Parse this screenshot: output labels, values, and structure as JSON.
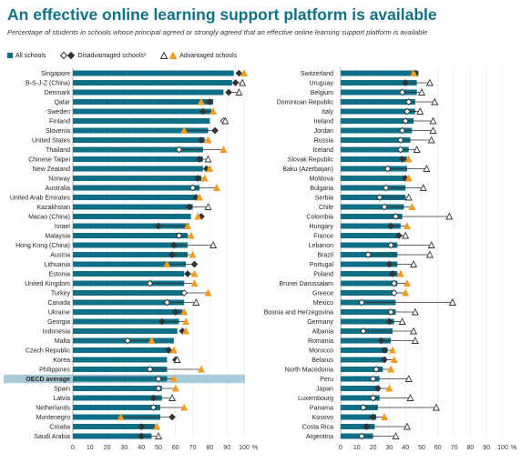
{
  "title": "An effective online learning support platform is available",
  "subtitle": "Percentage of students in schools whose principal agreed or strongly agreed that an effective online learning support platform is available",
  "legend": {
    "all": "All schools",
    "disadv": "Disadvantaged schools¹",
    "adv": "Advantaged schools"
  },
  "colors": {
    "bar": "#0f6f86",
    "oecd_highlight": "#a9cbd7",
    "adv_marker": "#f39c1f",
    "disadv_marker": "#ffffff",
    "line": "#333333",
    "title": "#0f7285"
  },
  "chart_data": [
    {
      "type": "bar",
      "orientation": "horizontal",
      "xlabel": "%",
      "xlim": [
        0,
        100
      ],
      "xticks": [
        "0",
        "10",
        "20",
        "30",
        "40",
        "50",
        "60",
        "70",
        "80",
        "90",
        "100"
      ],
      "xunit": "%",
      "categories": [
        "Singapore",
        "B-S-J-Z (China)",
        "Denmark",
        "Qatar",
        "Sweden",
        "Finland",
        "Slovenia",
        "United States",
        "Thailand",
        "Chinese Taipei",
        "New Zealand",
        "Norway",
        "Australia",
        "United Arab Emirates",
        "Kazakhstan",
        "Macao (China)",
        "Israel",
        "Malaysia",
        "Hong Kong (China)",
        "Austria",
        "Lithuania",
        "Estonia",
        "United Kingdom",
        "Turkey",
        "Canada",
        "Ukraine",
        "Georgia",
        "Indonesia",
        "Malta",
        "Czech Republic",
        "Korea",
        "Philippines",
        "OECD average",
        "Spain",
        "Latvia",
        "Netherlands",
        "Montenegro",
        "Croatia",
        "Saudi Arabia"
      ],
      "highlight": "OECD average",
      "series": [
        {
          "name": "All schools",
          "values": [
            94,
            93,
            88,
            82,
            81,
            80,
            79,
            77,
            76,
            76,
            76,
            75,
            74,
            72,
            70,
            69,
            68,
            67,
            67,
            67,
            66,
            65,
            65,
            65,
            65,
            64,
            62,
            61,
            59,
            57,
            55,
            55,
            55,
            52,
            52,
            51,
            51,
            48,
            46
          ],
          "hollow": [
            false,
            false,
            false,
            false,
            false,
            false,
            false,
            false,
            false,
            false,
            false,
            false,
            false,
            false,
            false,
            false,
            false,
            false,
            false,
            false,
            false,
            false,
            false,
            false,
            false,
            false,
            false,
            false,
            false,
            false,
            false,
            false,
            false,
            false,
            false,
            false,
            false,
            false,
            false
          ]
        },
        {
          "name": "Disadvantaged schools¹",
          "values": [
            97,
            95,
            91,
            80,
            76,
            88,
            83,
            75,
            62,
            74,
            78,
            73,
            70,
            72,
            68,
            75,
            50,
            62,
            59,
            58,
            71,
            67,
            45,
            65,
            55,
            60,
            52,
            64,
            32,
            56,
            60,
            45,
            50,
            50,
            47,
            47,
            58,
            40,
            40
          ],
          "hollow": [
            false,
            false,
            false,
            false,
            false,
            true,
            false,
            false,
            true,
            false,
            false,
            false,
            true,
            false,
            false,
            false,
            false,
            true,
            false,
            false,
            false,
            false,
            true,
            true,
            true,
            false,
            false,
            false,
            true,
            false,
            false,
            true,
            true,
            true,
            false,
            true,
            false,
            false,
            false
          ]
        },
        {
          "name": "Advantaged schools",
          "values": [
            100,
            99,
            97,
            75,
            82,
            89,
            65,
            79,
            88,
            79,
            80,
            77,
            84,
            74,
            79,
            73,
            67,
            69,
            82,
            70,
            55,
            71,
            71,
            79,
            72,
            65,
            66,
            66,
            46,
            59,
            61,
            75,
            59,
            60,
            58,
            65,
            28,
            49,
            50
          ],
          "hollow": [
            false,
            true,
            true,
            false,
            false,
            true,
            false,
            false,
            false,
            true,
            false,
            false,
            false,
            false,
            true,
            false,
            false,
            false,
            true,
            false,
            false,
            false,
            false,
            false,
            true,
            false,
            false,
            false,
            false,
            false,
            true,
            false,
            false,
            false,
            true,
            false,
            false,
            false,
            true
          ]
        }
      ]
    },
    {
      "type": "bar",
      "orientation": "horizontal",
      "xlabel": "%",
      "xlim": [
        0,
        100
      ],
      "xticks": [
        "0",
        "10",
        "20",
        "30",
        "40",
        "50",
        "60",
        "70",
        "80",
        "90",
        "100"
      ],
      "xunit": "%",
      "categories": [
        "Switzerland",
        "Uruguay",
        "Belgium",
        "Dominican Republic",
        "Italy",
        "Ireland",
        "Jordan",
        "Russia",
        "Iceland",
        "Slovak Republic",
        "Baku (Azerbaijan)",
        "Moldova",
        "Bulgaria",
        "Serbia",
        "Chile",
        "Colombia",
        "Hungary",
        "France",
        "Lebanon",
        "Brazil",
        "Portugal",
        "Poland",
        "Brunei Darussalam",
        "Greece",
        "Mexico",
        "Bosnia and Herzegovina",
        "Germany",
        "Albania",
        "Romania",
        "Morocco",
        "Belarus",
        "North Macedonia",
        "Peru",
        "Japan",
        "Luxembourg",
        "Panama",
        "Kosovo",
        "Costa Rica",
        "Argentina"
      ],
      "highlight": "",
      "series": [
        {
          "name": "All schools",
          "values": [
            48,
            47,
            47,
            46,
            46,
            45,
            44,
            43,
            42,
            41,
            41,
            40,
            40,
            40,
            39,
            38,
            37,
            36,
            35,
            35,
            35,
            35,
            35,
            34,
            34,
            34,
            33,
            32,
            31,
            29,
            28,
            26,
            24,
            24,
            24,
            23,
            22,
            21,
            20
          ],
          "hollow": [
            false,
            false,
            false,
            false,
            false,
            false,
            false,
            false,
            false,
            false,
            false,
            false,
            false,
            false,
            false,
            false,
            false,
            false,
            false,
            false,
            false,
            false,
            false,
            false,
            false,
            false,
            false,
            false,
            false,
            false,
            false,
            false,
            false,
            false,
            false,
            false,
            false,
            false,
            false
          ]
        },
        {
          "name": "Disadvantaged schools¹",
          "values": [
            46,
            40,
            38,
            42,
            41,
            40,
            38,
            37,
            37,
            38,
            29,
            40,
            28,
            24,
            27,
            34,
            31,
            36,
            31,
            17,
            30,
            32,
            33,
            33,
            13,
            31,
            30,
            14,
            25,
            27,
            27,
            22,
            20,
            23,
            20,
            14,
            20,
            16,
            13
          ],
          "hollow": [
            false,
            false,
            true,
            true,
            true,
            true,
            true,
            true,
            true,
            false,
            true,
            false,
            true,
            true,
            true,
            true,
            false,
            false,
            true,
            true,
            false,
            false,
            true,
            true,
            true,
            true,
            false,
            true,
            false,
            false,
            false,
            true,
            true,
            false,
            true,
            true,
            false,
            false,
            true
          ]
        },
        {
          "name": "Advantaged schools",
          "values": [
            45,
            55,
            50,
            58,
            49,
            57,
            57,
            56,
            47,
            42,
            53,
            42,
            51,
            42,
            44,
            67,
            41,
            40,
            56,
            55,
            45,
            37,
            41,
            40,
            69,
            46,
            38,
            45,
            46,
            32,
            33,
            31,
            42,
            30,
            43,
            59,
            27,
            41,
            34
          ],
          "hollow": [
            false,
            true,
            true,
            true,
            true,
            true,
            true,
            true,
            true,
            false,
            true,
            false,
            true,
            true,
            false,
            true,
            false,
            true,
            true,
            true,
            true,
            false,
            false,
            false,
            true,
            true,
            true,
            true,
            true,
            false,
            false,
            false,
            true,
            false,
            true,
            true,
            false,
            true,
            true
          ]
        }
      ]
    }
  ]
}
